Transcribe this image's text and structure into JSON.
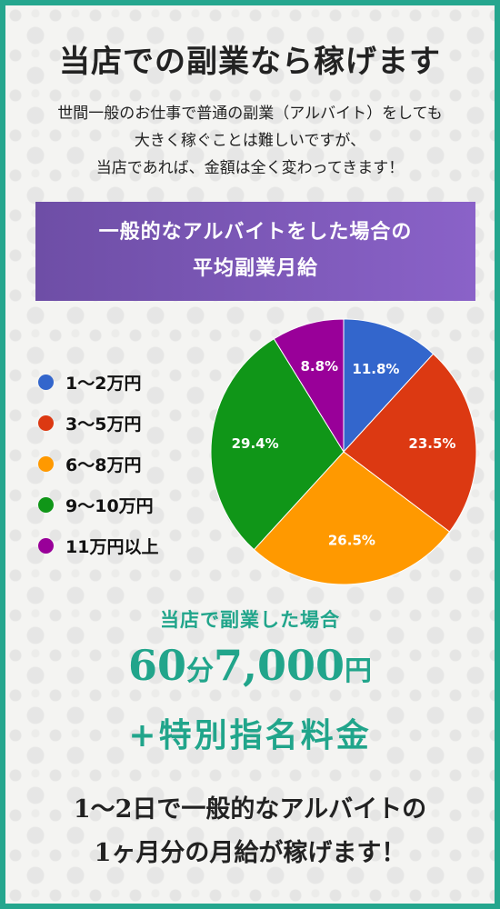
{
  "title": "当店での副業なら稼げます",
  "intro": {
    "line1": "世間一般のお仕事で普通の副業（アルバイト）をしても",
    "line2": "大きく稼ぐことは難しいですが、",
    "line3": "当店であれば、金額は全く変わってきます！"
  },
  "banner": {
    "line1": "一般的なアルバイトをした場合の",
    "line2": "平均副業月給"
  },
  "chart_data": {
    "type": "pie",
    "categories": [
      "1～2万円",
      "3～5万円",
      "6～8万円",
      "9～10万円",
      "11万円以上"
    ],
    "values": [
      11.8,
      23.5,
      26.5,
      29.4,
      8.8
    ],
    "value_labels": [
      "11.8%",
      "23.5%",
      "26.5%",
      "29.4%",
      "8.8%"
    ],
    "colors": [
      "#3366cc",
      "#dc3912",
      "#ff9900",
      "#109618",
      "#990099"
    ],
    "legend_position": "left",
    "start_angle": "12 o'clock",
    "direction": "clockwise"
  },
  "offer": {
    "heading": "当店で副業した場合",
    "price_part1": "60",
    "price_unit1": "分",
    "price_part2": "7,000",
    "price_unit2": "円",
    "extra": "+特別指名料金"
  },
  "closing": {
    "line1": "1～2日で一般的なアルバイトの",
    "line2": "1ヶ月分の月給が稼げます！"
  }
}
